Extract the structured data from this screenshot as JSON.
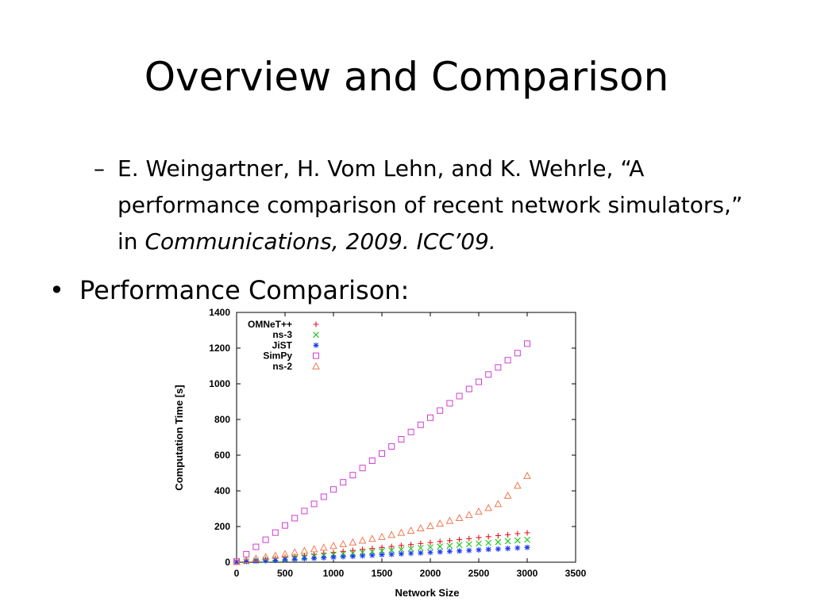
{
  "slide": {
    "title": "Overview and Comparison",
    "citation_dash": "–",
    "citation_text": "E. Weingartner, H. Vom Lehn, and K. Wehrle, “A performance comparison of recent network simulators,” in ",
    "citation_venue": "Communications, 2009. ICC’09.",
    "bullet_symbol": "•",
    "bullet_text": "Performance Comparison:"
  },
  "chart_data": {
    "type": "scatter",
    "xlabel": "Network Size",
    "ylabel": "Computation Time [s]",
    "xlim": [
      0,
      3500
    ],
    "ylim": [
      0,
      1400
    ],
    "xticks": [
      0,
      500,
      1000,
      1500,
      2000,
      2500,
      3000,
      3500
    ],
    "yticks": [
      0,
      200,
      400,
      600,
      800,
      1000,
      1200,
      1400
    ],
    "grid": false,
    "legend_position": "top-left",
    "x": [
      0,
      100,
      200,
      300,
      400,
      500,
      600,
      700,
      800,
      900,
      1000,
      1100,
      1200,
      1300,
      1400,
      1500,
      1600,
      1700,
      1800,
      1900,
      2000,
      2100,
      2200,
      2300,
      2400,
      2500,
      2600,
      2700,
      2800,
      2900,
      3000
    ],
    "series": [
      {
        "name": "OMNeT++",
        "marker": "plus",
        "color": "#e8141e",
        "values": [
          2,
          6,
          11,
          17,
          22,
          28,
          33,
          38,
          44,
          50,
          55,
          61,
          66,
          72,
          77,
          83,
          88,
          94,
          99,
          105,
          110,
          116,
          121,
          127,
          132,
          138,
          143,
          149,
          154,
          160,
          165
        ]
      },
      {
        "name": "ns-3",
        "marker": "cross",
        "color": "#19c819",
        "values": [
          1,
          5,
          9,
          13,
          17,
          21,
          25,
          29,
          34,
          38,
          42,
          46,
          50,
          55,
          59,
          63,
          67,
          71,
          76,
          80,
          84,
          88,
          92,
          97,
          101,
          105,
          109,
          113,
          118,
          122,
          126
        ]
      },
      {
        "name": "JiST",
        "marker": "star",
        "color": "#1e3cf0",
        "values": [
          1,
          3,
          6,
          9,
          11,
          14,
          17,
          20,
          22,
          25,
          28,
          31,
          33,
          36,
          39,
          42,
          44,
          47,
          50,
          52,
          55,
          58,
          61,
          63,
          66,
          69,
          72,
          74,
          77,
          80,
          83
        ]
      },
      {
        "name": "SimPy",
        "marker": "square",
        "color": "#d23cd2",
        "values": [
          5,
          45,
          86,
          126,
          166,
          206,
          247,
          287,
          327,
          367,
          408,
          448,
          488,
          528,
          569,
          609,
          649,
          689,
          730,
          770,
          810,
          850,
          891,
          931,
          971,
          1011,
          1052,
          1092,
          1132,
          1172,
          1225
        ]
      },
      {
        "name": "ns-2",
        "marker": "triangle",
        "color": "#f07850",
        "values": [
          3,
          12,
          22,
          30,
          38,
          47,
          56,
          65,
          74,
          83,
          92,
          102,
          112,
          122,
          132,
          143,
          154,
          166,
          178,
          191,
          204,
          218,
          233,
          249,
          266,
          285,
          305,
          327,
          374,
          430,
          485
        ]
      }
    ]
  }
}
